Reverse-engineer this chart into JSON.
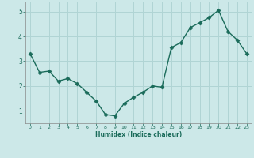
{
  "x": [
    0,
    1,
    2,
    3,
    4,
    5,
    6,
    7,
    8,
    9,
    10,
    11,
    12,
    13,
    14,
    15,
    16,
    17,
    18,
    19,
    20,
    21,
    22,
    23
  ],
  "y": [
    3.3,
    2.55,
    2.6,
    2.2,
    2.3,
    2.1,
    1.75,
    1.4,
    0.85,
    0.8,
    1.3,
    1.55,
    1.75,
    2.0,
    1.95,
    3.55,
    3.75,
    4.35,
    4.55,
    4.75,
    5.05,
    4.2,
    3.85,
    3.3
  ],
  "line_color": "#1a6b5a",
  "marker": "D",
  "markersize": 2.5,
  "linewidth": 1.0,
  "xlabel": "Humidex (Indice chaleur)",
  "xlim": [
    -0.5,
    23.5
  ],
  "ylim": [
    0.5,
    5.4
  ],
  "yticks": [
    1,
    2,
    3,
    4,
    5
  ],
  "xticks": [
    0,
    1,
    2,
    3,
    4,
    5,
    6,
    7,
    8,
    9,
    10,
    11,
    12,
    13,
    14,
    15,
    16,
    17,
    18,
    19,
    20,
    21,
    22,
    23
  ],
  "bg_color": "#cce8e8",
  "grid_color": "#b0d4d4",
  "tick_color": "#1a6b5a",
  "label_color": "#1a6b5a",
  "spine_color": "#888888"
}
